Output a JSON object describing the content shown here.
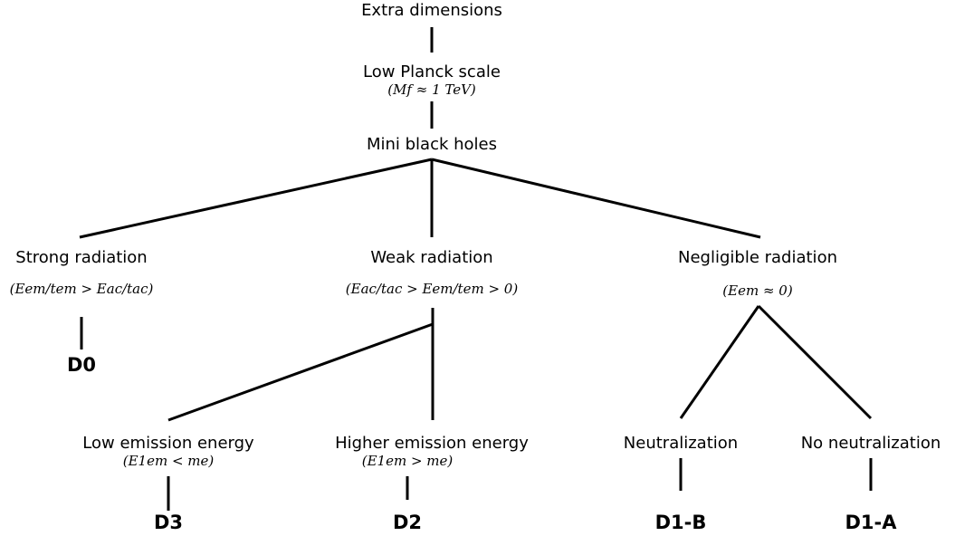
{
  "nodes": [
    {
      "label": "Extra dimensions"
    },
    {
      "label": "Low Planck scale",
      "formula": "(Mf ≈ 1 TeV)"
    },
    {
      "label": "Mini black holes"
    },
    {
      "label": "Strong radiation",
      "formula": "(Eem/tem > Eac/tac)"
    },
    {
      "label": "Weak radiation",
      "formula": "(Eac/tac > Eem/tem > 0)"
    },
    {
      "label": "Negligible radiation",
      "formula": "(Eem ≈ 0)"
    },
    {
      "label": "D0"
    },
    {
      "label": "Low emission energy",
      "formula": "(E1em < me)"
    },
    {
      "label": "Higher emission energy",
      "formula": "(E1em > me)"
    },
    {
      "label": "Neutralization"
    },
    {
      "label": "No neutralization"
    },
    {
      "label": "D3"
    },
    {
      "label": "D2"
    },
    {
      "label": "D1-B"
    },
    {
      "label": "D1-A"
    }
  ]
}
